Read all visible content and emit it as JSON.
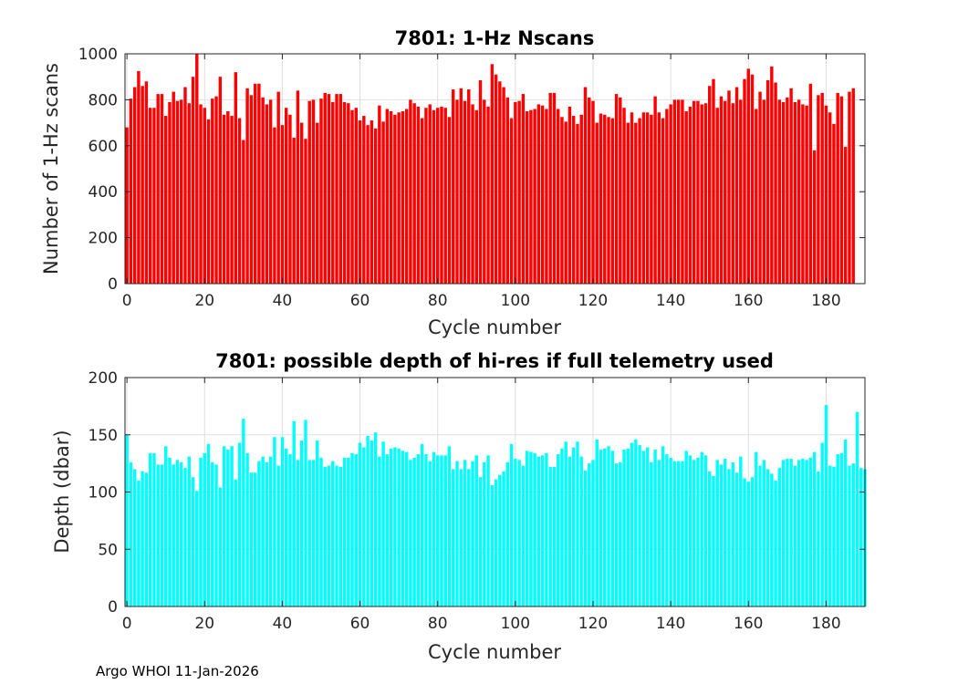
{
  "footer_text": "Argo WHOI 11-Jan-2026",
  "chart_data": [
    {
      "type": "bar",
      "title": "7801: 1-Hz Nscans",
      "xlabel": "Cycle number",
      "ylabel": "Number of 1-Hz scans",
      "color": "#ff0000",
      "xlim": [
        -0.5,
        190
      ],
      "ylim": [
        0,
        1000
      ],
      "xticks": [
        0,
        20,
        40,
        60,
        80,
        100,
        120,
        140,
        160,
        180
      ],
      "yticks": [
        0,
        200,
        400,
        600,
        800,
        1000
      ],
      "grid": true,
      "x_start": 0,
      "values": [
        680,
        805,
        855,
        925,
        860,
        880,
        765,
        765,
        825,
        825,
        730,
        790,
        835,
        795,
        800,
        855,
        785,
        900,
        1015,
        780,
        765,
        715,
        805,
        815,
        900,
        735,
        750,
        730,
        920,
        720,
        625,
        850,
        820,
        870,
        870,
        810,
        780,
        800,
        680,
        835,
        690,
        765,
        735,
        635,
        840,
        700,
        630,
        795,
        800,
        700,
        805,
        830,
        825,
        790,
        825,
        825,
        790,
        785,
        755,
        765,
        710,
        730,
        690,
        710,
        675,
        775,
        705,
        760,
        750,
        735,
        745,
        750,
        760,
        800,
        785,
        770,
        720,
        765,
        780,
        755,
        765,
        770,
        765,
        725,
        845,
        800,
        850,
        795,
        845,
        780,
        755,
        885,
        800,
        770,
        955,
        910,
        880,
        855,
        810,
        720,
        790,
        795,
        825,
        750,
        755,
        760,
        780,
        775,
        760,
        830,
        830,
        760,
        725,
        705,
        770,
        730,
        695,
        735,
        855,
        810,
        795,
        700,
        740,
        735,
        725,
        720,
        825,
        810,
        765,
        700,
        745,
        700,
        720,
        745,
        745,
        735,
        815,
        745,
        720,
        760,
        780,
        800,
        800,
        800,
        750,
        770,
        795,
        795,
        780,
        785,
        860,
        890,
        765,
        815,
        795,
        840,
        785,
        855,
        800,
        890,
        935,
        910,
        760,
        835,
        800,
        885,
        945,
        875,
        800,
        790,
        810,
        850,
        790,
        800,
        780,
        775,
        870,
        580,
        820,
        830,
        775,
        745,
        695,
        830,
        815,
        595,
        835,
        850
      ]
    },
    {
      "type": "bar",
      "title": "7801: possible depth of hi-res if full telemetry used",
      "xlabel": "Cycle number",
      "ylabel": "Depth (dbar)",
      "color": "#00ffff",
      "xlim": [
        -0.5,
        190
      ],
      "ylim": [
        0,
        200
      ],
      "xticks": [
        0,
        20,
        40,
        60,
        80,
        100,
        120,
        140,
        160,
        180
      ],
      "yticks": [
        0,
        50,
        100,
        150,
        200
      ],
      "grid": true,
      "x_start": 0,
      "values": [
        150,
        126,
        120,
        110,
        118,
        117,
        134,
        134,
        124,
        124,
        140,
        130,
        124,
        128,
        126,
        121,
        131,
        113,
        101,
        130,
        134,
        142,
        126,
        124,
        104,
        140,
        137,
        140,
        111,
        143,
        164,
        134,
        117,
        117,
        127,
        131,
        126,
        131,
        148,
        123,
        148,
        138,
        133,
        162,
        128,
        145,
        163,
        128,
        128,
        145,
        130,
        122,
        123,
        127,
        123,
        122,
        130,
        130,
        134,
        133,
        143,
        139,
        149,
        145,
        152,
        131,
        144,
        133,
        138,
        139,
        138,
        136,
        135,
        128,
        130,
        133,
        142,
        133,
        127,
        135,
        132,
        132,
        132,
        140,
        120,
        127,
        120,
        128,
        120,
        127,
        132,
        113,
        126,
        132,
        106,
        111,
        115,
        118,
        126,
        142,
        129,
        128,
        123,
        136,
        135,
        134,
        131,
        132,
        134,
        122,
        122,
        133,
        138,
        144,
        131,
        139,
        144,
        131,
        119,
        125,
        128,
        146,
        137,
        138,
        140,
        136,
        125,
        126,
        137,
        138,
        143,
        146,
        141,
        136,
        139,
        126,
        137,
        128,
        140,
        133,
        130,
        127,
        127,
        127,
        136,
        132,
        128,
        130,
        135,
        132,
        118,
        114,
        128,
        124,
        129,
        120,
        126,
        117,
        131,
        112,
        109,
        113,
        135,
        123,
        128,
        120,
        116,
        110,
        121,
        128,
        129,
        129,
        123,
        128,
        129,
        128,
        130,
        135,
        118,
        143,
        176,
        123,
        122,
        133,
        134,
        146,
        123,
        125,
        170,
        121,
        120
      ]
    }
  ]
}
